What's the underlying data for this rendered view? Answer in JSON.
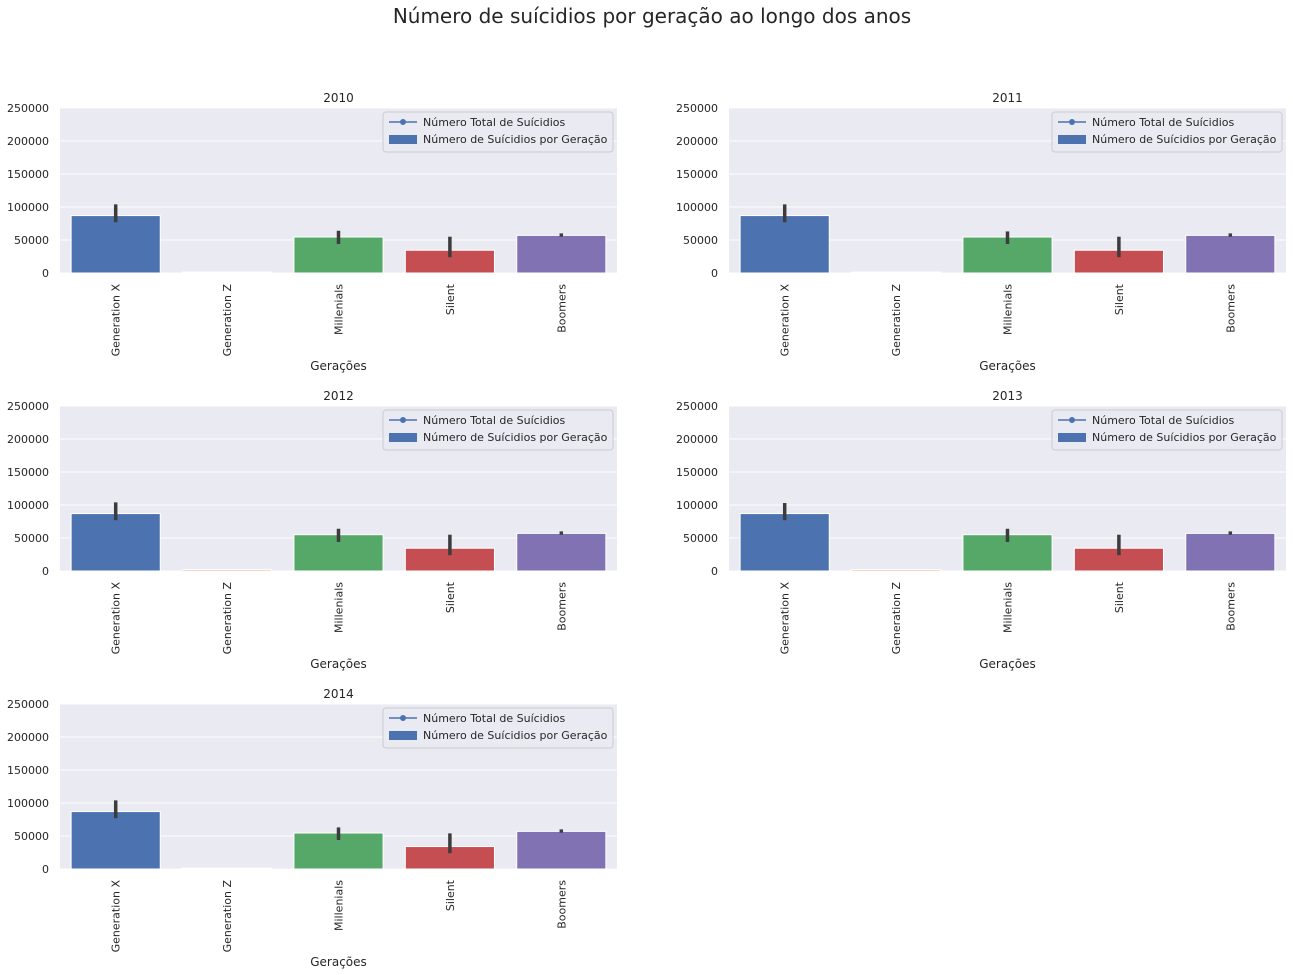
{
  "suptitle": "Número de suícidios por geração ao longo dos anos",
  "chart_data": [
    {
      "type": "bar",
      "title": "2010",
      "xlabel": "Gerações",
      "ylabel": "",
      "ylim": [
        0,
        250000
      ],
      "yticks": [
        0,
        50000,
        100000,
        150000,
        200000,
        250000
      ],
      "grid": true,
      "legend_position": "top-right",
      "legend": [
        {
          "label": "Número Total de Suícidios",
          "kind": "line-marker",
          "color": "#4c72b0"
        },
        {
          "label": "Número de Suícidios por Geração",
          "kind": "bar",
          "color": "#4c72b0"
        }
      ],
      "categories": [
        "Generation X",
        "Generation Z",
        "Millenials",
        "Silent",
        "Boomers"
      ],
      "values": [
        87000,
        1500,
        54500,
        34500,
        57000
      ],
      "error_bars": [
        [
          77000,
          104000
        ],
        null,
        [
          44000,
          64000
        ],
        [
          24000,
          55000
        ],
        [
          55000,
          60000
        ]
      ],
      "colors": [
        "#4c72b0",
        "#dd8452",
        "#55a868",
        "#c44e52",
        "#8172b3"
      ]
    },
    {
      "type": "bar",
      "title": "2011",
      "xlabel": "Gerações",
      "ylabel": "",
      "ylim": [
        0,
        250000
      ],
      "yticks": [
        0,
        50000,
        100000,
        150000,
        200000,
        250000
      ],
      "grid": true,
      "legend_position": "top-right",
      "legend": [
        {
          "label": "Número Total de Suícidios",
          "kind": "line-marker",
          "color": "#4c72b0"
        },
        {
          "label": "Número de Suícidios por Geração",
          "kind": "bar",
          "color": "#4c72b0"
        }
      ],
      "categories": [
        "Generation X",
        "Generation Z",
        "Millenials",
        "Silent",
        "Boomers"
      ],
      "values": [
        87000,
        1500,
        54500,
        34500,
        57000
      ],
      "error_bars": [
        [
          77000,
          104000
        ],
        null,
        [
          44000,
          63000
        ],
        [
          24000,
          55000
        ],
        [
          55000,
          60000
        ]
      ],
      "colors": [
        "#4c72b0",
        "#dd8452",
        "#55a868",
        "#c44e52",
        "#8172b3"
      ]
    },
    {
      "type": "bar",
      "title": "2012",
      "xlabel": "Gerações",
      "ylabel": "",
      "ylim": [
        0,
        250000
      ],
      "yticks": [
        0,
        50000,
        100000,
        150000,
        200000,
        250000
      ],
      "grid": true,
      "legend_position": "top-right",
      "legend": [
        {
          "label": "Número Total de Suícidios",
          "kind": "line-marker",
          "color": "#4c72b0"
        },
        {
          "label": "Número de Suícidios por Geração",
          "kind": "bar",
          "color": "#4c72b0"
        }
      ],
      "categories": [
        "Generation X",
        "Generation Z",
        "Millenials",
        "Silent",
        "Boomers"
      ],
      "values": [
        87000,
        2000,
        55000,
        34500,
        57000
      ],
      "error_bars": [
        [
          77000,
          104000
        ],
        null,
        [
          44000,
          64000
        ],
        [
          24000,
          55000
        ],
        [
          55000,
          60000
        ]
      ],
      "colors": [
        "#4c72b0",
        "#dd8452",
        "#55a868",
        "#c44e52",
        "#8172b3"
      ]
    },
    {
      "type": "bar",
      "title": "2013",
      "xlabel": "Gerações",
      "ylabel": "",
      "ylim": [
        0,
        250000
      ],
      "yticks": [
        0,
        50000,
        100000,
        150000,
        200000,
        250000
      ],
      "grid": true,
      "legend_position": "top-right",
      "legend": [
        {
          "label": "Número Total de Suícidios",
          "kind": "line-marker",
          "color": "#4c72b0"
        },
        {
          "label": "Número de Suícidios por Geração",
          "kind": "bar",
          "color": "#4c72b0"
        }
      ],
      "categories": [
        "Generation X",
        "Generation Z",
        "Millenials",
        "Silent",
        "Boomers"
      ],
      "values": [
        87000,
        2000,
        55000,
        34500,
        57000
      ],
      "error_bars": [
        [
          77000,
          103000
        ],
        null,
        [
          44000,
          64000
        ],
        [
          24000,
          55000
        ],
        [
          55000,
          60000
        ]
      ],
      "colors": [
        "#4c72b0",
        "#dd8452",
        "#55a868",
        "#c44e52",
        "#8172b3"
      ]
    },
    {
      "type": "bar",
      "title": "2014",
      "xlabel": "Gerações",
      "ylabel": "",
      "ylim": [
        0,
        250000
      ],
      "yticks": [
        0,
        50000,
        100000,
        150000,
        200000,
        250000
      ],
      "grid": true,
      "legend_position": "top-right",
      "legend": [
        {
          "label": "Número Total de Suícidios",
          "kind": "line-marker",
          "color": "#4c72b0"
        },
        {
          "label": "Número de Suícidios por Geração",
          "kind": "bar",
          "color": "#4c72b0"
        }
      ],
      "categories": [
        "Generation X",
        "Generation Z",
        "Millenials",
        "Silent",
        "Boomers"
      ],
      "values": [
        87000,
        1500,
        54500,
        34000,
        57000
      ],
      "error_bars": [
        [
          77000,
          104000
        ],
        null,
        [
          44000,
          63000
        ],
        [
          24000,
          54000
        ],
        [
          55000,
          60000
        ]
      ],
      "colors": [
        "#4c72b0",
        "#dd8452",
        "#55a868",
        "#c44e52",
        "#8172b3"
      ]
    }
  ]
}
